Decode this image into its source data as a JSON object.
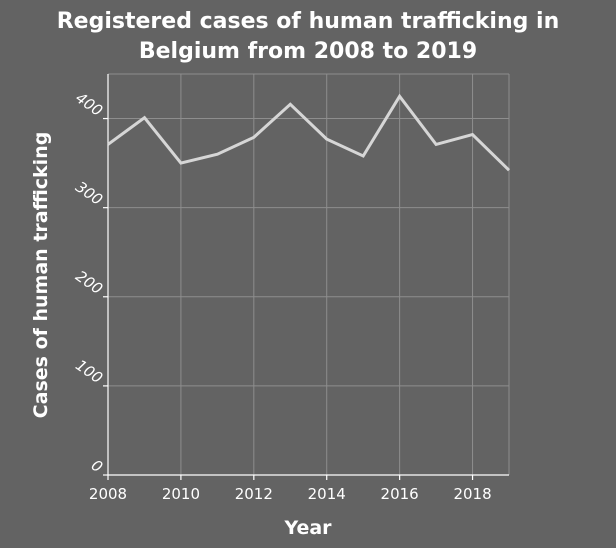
{
  "chart_data": {
    "type": "line",
    "title_lines": [
      "Registered cases of human trafficking in",
      "Belgium from 2008 to 2019"
    ],
    "xlabel": "Year",
    "ylabel": "Cases of human trafficking",
    "xlim": [
      2008,
      2019
    ],
    "ylim": [
      0,
      450
    ],
    "xticks": [
      2008,
      2010,
      2012,
      2014,
      2016,
      2018
    ],
    "yticks": [
      0,
      100,
      200,
      300,
      400
    ],
    "grid": true,
    "series": [
      {
        "x": [
          2008,
          2009,
          2010,
          2011,
          2012,
          2013,
          2014,
          2015,
          2016,
          2017,
          2018,
          2019
        ],
        "y": [
          371,
          401,
          350,
          360,
          379,
          416,
          377,
          358,
          425,
          371,
          382,
          342
        ]
      }
    ],
    "colors": {
      "background": "#636363",
      "plot_background": "#636363",
      "grid": "#8e8e8e",
      "line": "#d6d6d6",
      "axis": "#ffffff",
      "text": "#ffffff"
    }
  }
}
